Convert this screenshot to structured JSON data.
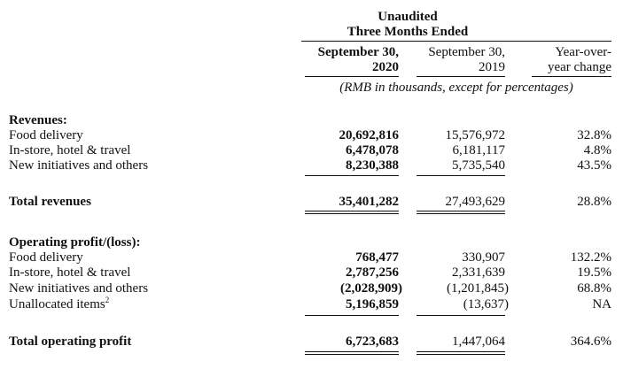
{
  "header": {
    "unaudited": "Unaudited",
    "period": "Three Months Ended",
    "col1_line1": "September 30,",
    "col1_line2": "2020",
    "col2_line1": "September 30,",
    "col2_line2": "2019",
    "col3_line1": "Year-over-",
    "col3_line2": "year change",
    "units": "(RMB in thousands, except for percentages)"
  },
  "revenues": {
    "heading": "Revenues:",
    "rows": [
      {
        "label": "Food delivery",
        "v2020": "20,692,816",
        "v2019": "15,576,972",
        "change": "32.8%"
      },
      {
        "label": "In-store, hotel & travel",
        "v2020": "6,478,078",
        "v2019": "6,181,117",
        "change": "4.8%"
      },
      {
        "label": "New initiatives and others",
        "v2020": "8,230,388",
        "v2019": "5,735,540",
        "change": "43.5%"
      }
    ]
  },
  "total_revenues": {
    "label": "Total revenues",
    "v2020": "35,401,282",
    "v2019": "27,493,629",
    "change": "28.8%"
  },
  "operating": {
    "heading": "Operating profit/(loss):",
    "rows": [
      {
        "label": "Food delivery",
        "v2020": "768,477",
        "v2019": "330,907",
        "change": "132.2%"
      },
      {
        "label": "In-store, hotel & travel",
        "v2020": "2,787,256",
        "v2019": "2,331,639",
        "change": "19.5%"
      },
      {
        "label": "New initiatives and others",
        "v2020": "(2,028,909)",
        "v2019": "(1,201,845)",
        "change": "68.8%"
      },
      {
        "label": "Unallocated items",
        "footnote": "2",
        "v2020": "5,196,859",
        "v2019": "(13,637)",
        "change": "NA"
      }
    ]
  },
  "total_operating": {
    "label": "Total operating profit",
    "v2020": "6,723,683",
    "v2019": "1,447,064",
    "change": "364.6%"
  }
}
